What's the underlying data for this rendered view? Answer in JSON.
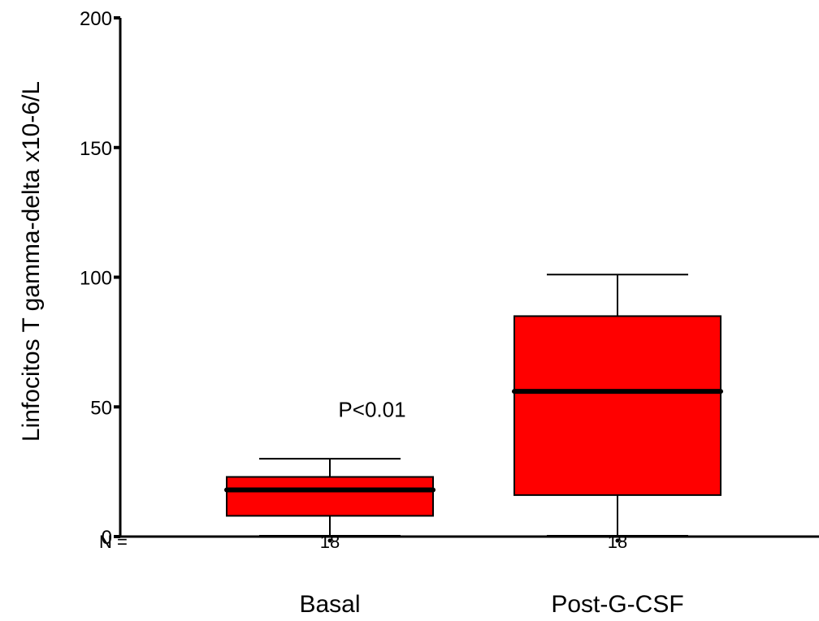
{
  "chart_data": {
    "type": "box",
    "title": "",
    "xlabel": "",
    "ylabel": "Linfocitos T gamma-delta x10-6/L",
    "ylim": [
      0,
      200
    ],
    "yticks": [
      0,
      50,
      100,
      150,
      200
    ],
    "grid": false,
    "legend": "none",
    "n_prefix": "N =",
    "categories": [
      "Basal",
      "Post-G-CSF"
    ],
    "series": [
      {
        "category": "Basal",
        "n": "18",
        "whisker_low": 0,
        "q1": 8,
        "median": 18,
        "q3": 23,
        "whisker_high": 30
      },
      {
        "category": "Post-G-CSF",
        "n": "18",
        "whisker_low": 0,
        "q1": 16,
        "median": 56,
        "q3": 85,
        "whisker_high": 101
      }
    ],
    "annotation": {
      "text": "P<0.01",
      "value": 49,
      "near": "Basal"
    },
    "box_color": "#ff0000"
  }
}
